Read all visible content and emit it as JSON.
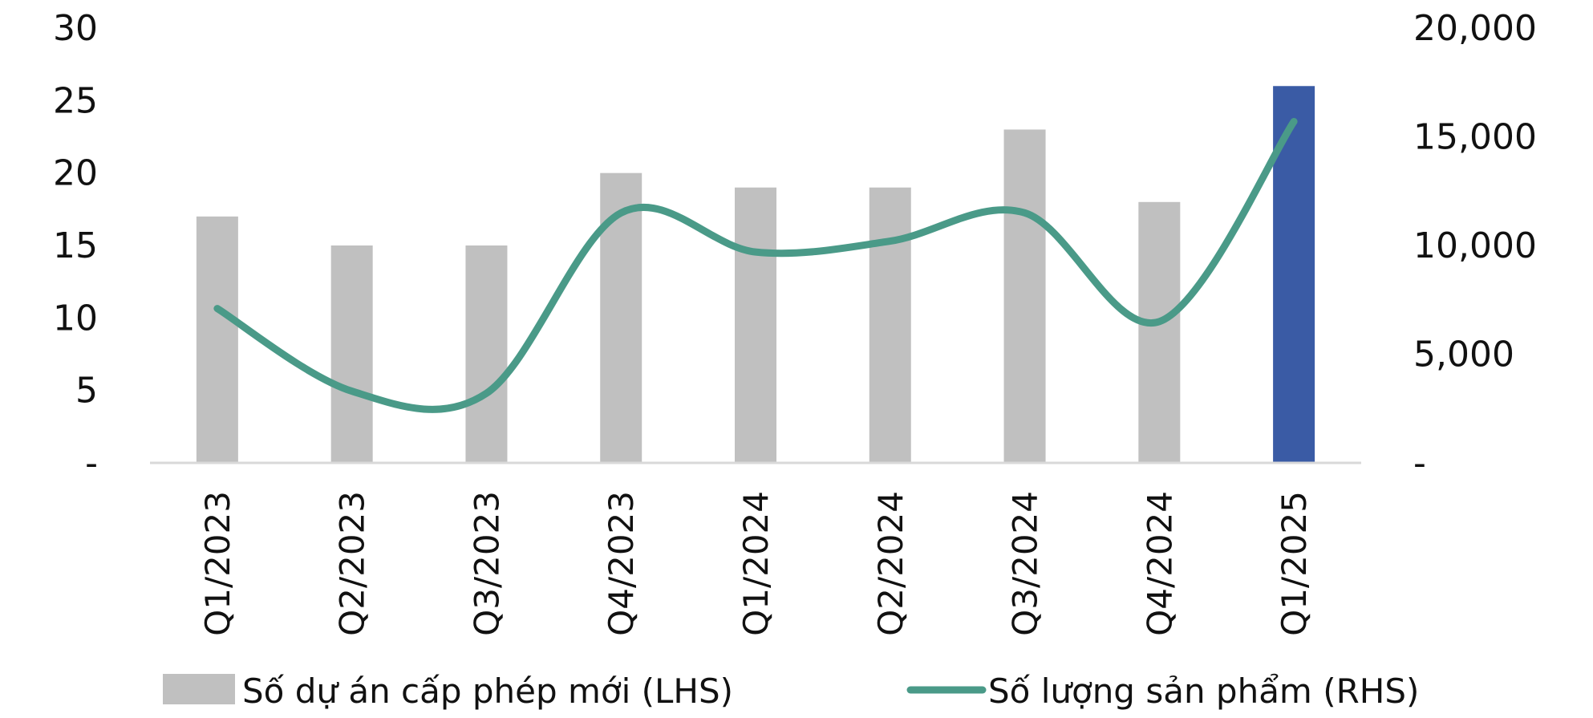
{
  "chart_data": {
    "type": "bar+line",
    "categories": [
      "Q1/2023",
      "Q2/2023",
      "Q3/2023",
      "Q4/2023",
      "Q1/2024",
      "Q2/2024",
      "Q3/2024",
      "Q4/2024",
      "Q1/2025"
    ],
    "series": [
      {
        "name": "Số dự án cấp phép mới (LHS)",
        "type": "bar",
        "axis": "left",
        "values": [
          17,
          15,
          15,
          20,
          19,
          19,
          23,
          18,
          26
        ],
        "color": "#c0c0c0",
        "highlight_color": "#3a5ba5",
        "highlight_index": 8
      },
      {
        "name": "Số lượng sản phẩm (RHS)",
        "type": "line",
        "axis": "right",
        "values": [
          7100,
          3300,
          3200,
          11500,
          9700,
          10200,
          11500,
          6500,
          15700
        ],
        "color": "#4a9a88"
      }
    ],
    "left_axis": {
      "range": [
        0,
        30
      ],
      "ticks": [
        {
          "value": 0,
          "label": "-"
        },
        {
          "value": 5,
          "label": "5"
        },
        {
          "value": 10,
          "label": "10"
        },
        {
          "value": 15,
          "label": "15"
        },
        {
          "value": 20,
          "label": "20"
        },
        {
          "value": 25,
          "label": "25"
        },
        {
          "value": 30,
          "label": "30"
        }
      ]
    },
    "right_axis": {
      "range": [
        0,
        20000
      ],
      "ticks": [
        {
          "value": 0,
          "label": "-"
        },
        {
          "value": 5000,
          "label": "5,000"
        },
        {
          "value": 10000,
          "label": "10,000"
        },
        {
          "value": 15000,
          "label": "15,000"
        },
        {
          "value": 20000,
          "label": "20,000"
        }
      ]
    },
    "grid": false,
    "legend_position": "bottom"
  }
}
